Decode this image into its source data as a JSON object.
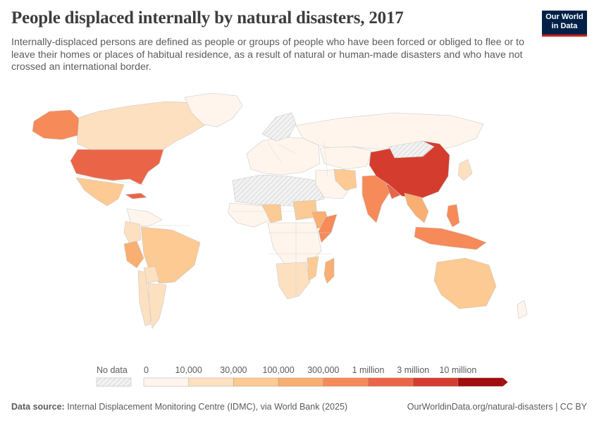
{
  "title": "People displaced internally by natural disasters, 2017",
  "subtitle": "Internally-displaced persons are defined as people or groups of people who have been forced or obliged to flee or to leave their homes or places of habitual residence, as a result of natural or human-made disasters and who have not crossed an international border.",
  "logo": {
    "line1": "Our World",
    "line2": "in Data"
  },
  "legend": {
    "no_data_label": "No data",
    "bins": [
      {
        "label": "0",
        "color": "#fff5ec"
      },
      {
        "label": "10,000",
        "color": "#fde0c0"
      },
      {
        "label": "30,000",
        "color": "#fcca92"
      },
      {
        "label": "100,000",
        "color": "#f9ae72"
      },
      {
        "label": "300,000",
        "color": "#f68a58"
      },
      {
        "label": "1 million",
        "color": "#ea6547"
      },
      {
        "label": "3 million",
        "color": "#d43d2e"
      },
      {
        "label": "10 million",
        "color": "#a10e0e"
      }
    ]
  },
  "regions": [
    {
      "name": "Canada",
      "bin": 1
    },
    {
      "name": "Alaska",
      "bin": 4
    },
    {
      "name": "Greenland",
      "bin": 0
    },
    {
      "name": "United States",
      "bin": 5
    },
    {
      "name": "Mexico",
      "bin": 2
    },
    {
      "name": "Cuba",
      "bin": 5
    },
    {
      "name": "South America North",
      "bin": 0
    },
    {
      "name": "Colombia",
      "bin": 1
    },
    {
      "name": "Peru",
      "bin": 3
    },
    {
      "name": "Brazil",
      "bin": 2
    },
    {
      "name": "Bolivia",
      "bin": 1
    },
    {
      "name": "Chile",
      "bin": 1
    },
    {
      "name": "Argentina",
      "bin": 1
    },
    {
      "name": "Europe",
      "bin": 0
    },
    {
      "name": "Scandinavia",
      "bin": -1
    },
    {
      "name": "Russia",
      "bin": 0
    },
    {
      "name": "Kazakhstan",
      "bin": 0
    },
    {
      "name": "Sahara",
      "bin": -1
    },
    {
      "name": "West Africa",
      "bin": 0
    },
    {
      "name": "Niger",
      "bin": 2
    },
    {
      "name": "Sudan",
      "bin": 2
    },
    {
      "name": "Ethiopia",
      "bin": 3
    },
    {
      "name": "Somalia",
      "bin": 4
    },
    {
      "name": "Central Africa",
      "bin": 0
    },
    {
      "name": "Southern Africa",
      "bin": 1
    },
    {
      "name": "Mozambique",
      "bin": 2
    },
    {
      "name": "Madagascar",
      "bin": 3
    },
    {
      "name": "Middle East",
      "bin": 0
    },
    {
      "name": "Iran",
      "bin": 2
    },
    {
      "name": "India",
      "bin": 4
    },
    {
      "name": "Bangladesh",
      "bin": 5
    },
    {
      "name": "China",
      "bin": 6
    },
    {
      "name": "Mongolia",
      "bin": -1
    },
    {
      "name": "Southeast Asia",
      "bin": 3
    },
    {
      "name": "Philippines",
      "bin": 4
    },
    {
      "name": "Indonesia",
      "bin": 4
    },
    {
      "name": "Japan",
      "bin": 1
    },
    {
      "name": "Australia",
      "bin": 2
    },
    {
      "name": "New Zealand",
      "bin": 0
    }
  ],
  "footer": {
    "source_label": "Data source:",
    "source_text": "Internal Displacement Monitoring Centre (IDMC), via World Bank (2025)",
    "right": "OurWorldinData.org/natural-disasters | CC BY"
  }
}
